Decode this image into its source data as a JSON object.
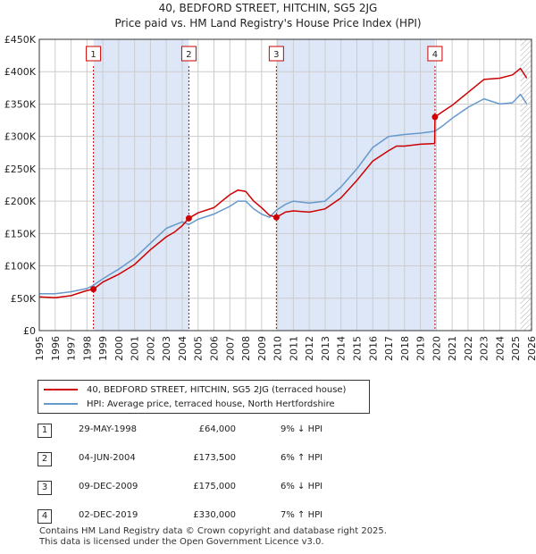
{
  "chart_data": {
    "type": "line",
    "title": "40, BEDFORD STREET, HITCHIN, SG5 2JG",
    "subtitle": "Price paid vs. HM Land Registry's House Price Index (HPI)",
    "xlim": [
      1995,
      2026
    ],
    "ylim": [
      0,
      450000
    ],
    "x_ticks": [
      "1995",
      "1996",
      "1997",
      "1998",
      "1999",
      "2000",
      "2001",
      "2002",
      "2003",
      "2004",
      "2005",
      "2006",
      "2007",
      "2008",
      "2009",
      "2010",
      "2011",
      "2012",
      "2013",
      "2014",
      "2015",
      "2016",
      "2017",
      "2018",
      "2019",
      "2020",
      "2021",
      "2022",
      "2023",
      "2024",
      "2025",
      "2026"
    ],
    "y_ticks": [
      {
        "value": 0,
        "label": "£0"
      },
      {
        "value": 50000,
        "label": "£50K"
      },
      {
        "value": 100000,
        "label": "£100K"
      },
      {
        "value": 150000,
        "label": "£150K"
      },
      {
        "value": 200000,
        "label": "£200K"
      },
      {
        "value": 250000,
        "label": "£250K"
      },
      {
        "value": 300000,
        "label": "£300K"
      },
      {
        "value": 350000,
        "label": "£350K"
      },
      {
        "value": 400000,
        "label": "£400K"
      },
      {
        "value": 450000,
        "label": "£450K"
      }
    ],
    "series": [
      {
        "name": "40, BEDFORD STREET, HITCHIN, SG5 2JG (terraced house)",
        "color": "#cc0000",
        "x": [
          1995.0,
          1996.0,
          1997.0,
          1997.5,
          1998.0,
          1998.41,
          1999.0,
          2000.0,
          2001.0,
          2002.0,
          2003.0,
          2003.5,
          2004.0,
          2004.42,
          2005.0,
          2006.0,
          2006.5,
          2007.0,
          2007.5,
          2008.0,
          2008.5,
          2009.0,
          2009.5,
          2009.93,
          2010.5,
          2011.0,
          2012.0,
          2013.0,
          2014.0,
          2015.0,
          2016.0,
          2017.0,
          2017.5,
          2018.0,
          2019.0,
          2019.9,
          2019.92,
          2020.5,
          2021.0,
          2022.0,
          2023.0,
          2024.0,
          2024.8,
          2025.3,
          2025.7
        ],
        "values": [
          52000,
          51000,
          54000,
          58000,
          62000,
          64000,
          75000,
          87000,
          102000,
          125000,
          145000,
          152000,
          162000,
          173500,
          182000,
          190000,
          200000,
          210000,
          217000,
          215000,
          200000,
          190000,
          178000,
          175000,
          183000,
          185000,
          183000,
          188000,
          205000,
          232000,
          262000,
          278000,
          285000,
          285000,
          288000,
          289000,
          330000,
          340000,
          348000,
          368000,
          388000,
          390000,
          395000,
          405000,
          390000
        ]
      },
      {
        "name": "HPI: Average price, terraced house, North Hertfordshire",
        "color": "#6699cc",
        "x": [
          1995.0,
          1996.0,
          1997.0,
          1998.0,
          1998.41,
          1999.0,
          2000.0,
          2001.0,
          2002.0,
          2003.0,
          2004.0,
          2004.42,
          2005.0,
          2006.0,
          2007.0,
          2007.5,
          2008.0,
          2008.5,
          2009.0,
          2009.5,
          2009.93,
          2010.5,
          2011.0,
          2012.0,
          2013.0,
          2014.0,
          2015.0,
          2016.0,
          2017.0,
          2018.0,
          2019.0,
          2019.92,
          2020.5,
          2021.0,
          2022.0,
          2023.0,
          2024.0,
          2024.8,
          2025.3,
          2025.7
        ],
        "values": [
          57000,
          57000,
          60000,
          65000,
          70000,
          80000,
          95000,
          112000,
          135000,
          158000,
          168000,
          164000,
          172000,
          180000,
          192000,
          200000,
          200000,
          188000,
          180000,
          175000,
          186000,
          195000,
          200000,
          197000,
          200000,
          222000,
          250000,
          283000,
          300000,
          303000,
          305000,
          308000,
          318000,
          328000,
          345000,
          358000,
          350000,
          352000,
          365000,
          350000
        ]
      }
    ],
    "sales": [
      {
        "label": "1",
        "year": 1998.41,
        "price": 64000
      },
      {
        "label": "2",
        "year": 2004.42,
        "price": 173500
      },
      {
        "label": "3",
        "year": 2009.93,
        "price": 175000
      },
      {
        "label": "4",
        "year": 2019.92,
        "price": 330000
      }
    ],
    "shaded_periods": [
      [
        1998.41,
        2004.42
      ],
      [
        2009.93,
        2019.92
      ]
    ],
    "hatched_from": 2025.3,
    "colors": {
      "price": "#cc0000",
      "hpi": "#6699cc",
      "shade": "#dde7f7",
      "grid": "#cccccc"
    }
  },
  "legend": {
    "price_label": "40, BEDFORD STREET, HITCHIN, SG5 2JG (terraced house)",
    "hpi_label": "HPI: Average price, terraced house, North Hertfordshire"
  },
  "table": [
    {
      "num": "1",
      "date": "29-MAY-1998",
      "price": "£64,000",
      "hpi": "9% ↓ HPI"
    },
    {
      "num": "2",
      "date": "04-JUN-2004",
      "price": "£173,500",
      "hpi": "6% ↑ HPI"
    },
    {
      "num": "3",
      "date": "09-DEC-2009",
      "price": "£175,000",
      "hpi": "6% ↓ HPI"
    },
    {
      "num": "4",
      "date": "02-DEC-2019",
      "price": "£330,000",
      "hpi": "7% ↑ HPI"
    }
  ],
  "footer": {
    "line1": "Contains HM Land Registry data © Crown copyright and database right 2025.",
    "line2": "This data is licensed under the Open Government Licence v3.0."
  }
}
